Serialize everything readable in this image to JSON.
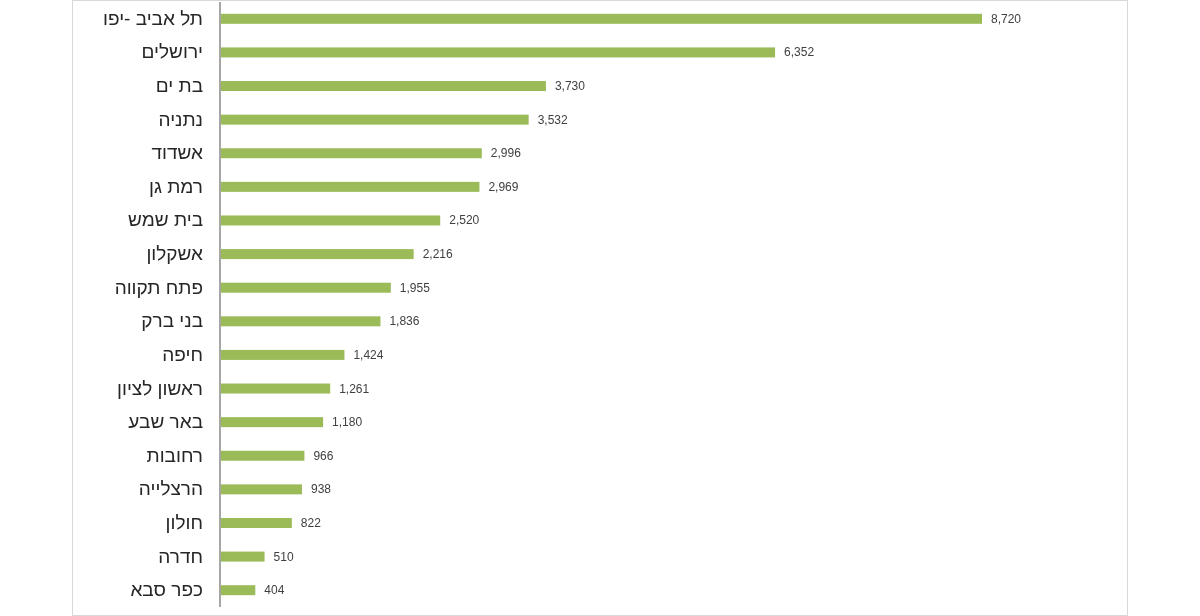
{
  "chart_data": {
    "type": "bar",
    "orientation": "horizontal",
    "color": "#9bbb59",
    "categories": [
      "תל אביב -יפו",
      "ירושלים",
      "בת ים",
      "נתניה",
      "אשדוד",
      "רמת גן",
      "בית שמש",
      "אשקלון",
      "פתח תקווה",
      "בני ברק",
      "חיפה",
      "ראשון לציון",
      "באר שבע",
      "רחובות",
      "הרצלייה",
      "חולון",
      "חדרה",
      "כפר סבא"
    ],
    "values": [
      8720,
      6352,
      3730,
      3532,
      2996,
      2969,
      2520,
      2216,
      1955,
      1836,
      1424,
      1261,
      1180,
      966,
      938,
      822,
      510,
      404
    ],
    "value_labels": [
      "8,720",
      "6,352",
      "3,730",
      "3,532",
      "2,996",
      "2,969",
      "2,520",
      "2,216",
      "1,955",
      "1,836",
      "1,424",
      "1,261",
      "1,180",
      "966",
      "938",
      "822",
      "510",
      "404"
    ]
  }
}
